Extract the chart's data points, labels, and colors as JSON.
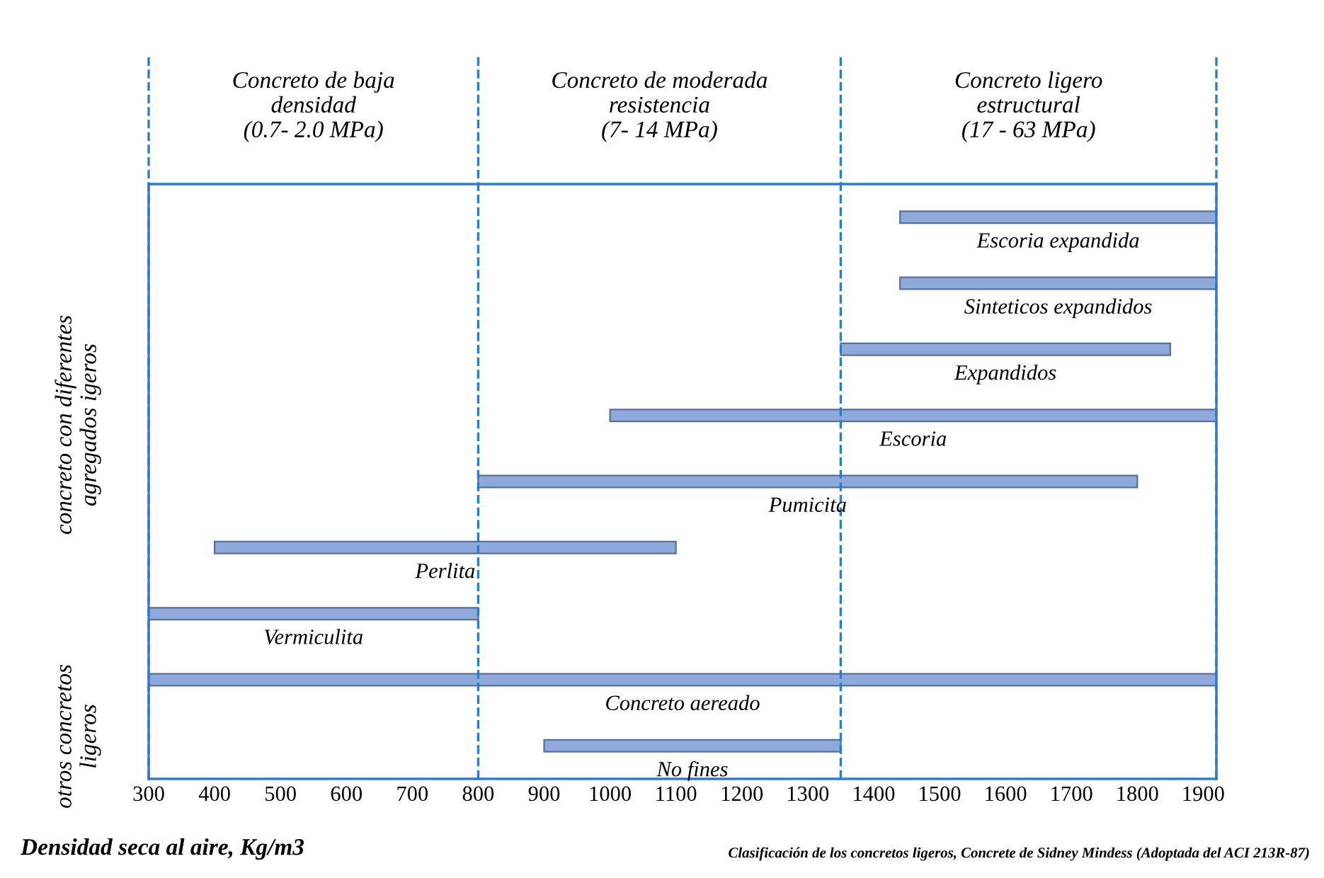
{
  "chart_data": {
    "type": "bar",
    "orientation": "horizontal",
    "categories": [
      "Escoria expandida",
      "Sinteticos expandidos",
      "Expandidos",
      "Escoria",
      "Pumicita",
      "Perlita",
      "Vermiculita",
      "Concreto aereado",
      "No fines"
    ],
    "base": [
      1440,
      1440,
      1350,
      1000,
      800,
      400,
      300,
      300,
      900
    ],
    "values": [
      480,
      480,
      500,
      920,
      1000,
      700,
      500,
      1620,
      450
    ],
    "color": "#8ea9db",
    "xlabel": "Densidad seca al aire, Kg/m3",
    "xlim": [
      300,
      1920
    ],
    "xticks": [
      300,
      400,
      500,
      600,
      700,
      800,
      900,
      1000,
      1100,
      1200,
      1300,
      1400,
      1500,
      1600,
      1700,
      1800,
      1900
    ],
    "tick_labels": "x",
    "grid": false,
    "legend": false,
    "ref_lines": [
      {
        "axis": "x",
        "value": 300,
        "line_style": "dashed",
        "color": "#2b7bd0"
      },
      {
        "axis": "x",
        "value": 800,
        "line_style": "dashed",
        "color": "#2b7bd0"
      },
      {
        "axis": "x",
        "value": 1350,
        "line_style": "dashed",
        "color": "#2b7bd0"
      },
      {
        "axis": "x",
        "value": 1920,
        "line_style": "dashed",
        "color": "#2b7bd0"
      }
    ],
    "annotations": [
      "Concreto de baja\ndensidad\n(0.7- 2.0 MPa)",
      "Concreto de moderada\nresistencia\n(7- 14 MPa)",
      "Concreto ligero\nestructural\n(17 - 63 MPa)",
      "concreto con diferentes\nagregados igeros",
      "otros concretos\nligeros",
      "Clasificación de los concretos ligeros, Concrete de Sidney Mindess (Adoptada del ACI 213R-87)"
    ]
  }
}
